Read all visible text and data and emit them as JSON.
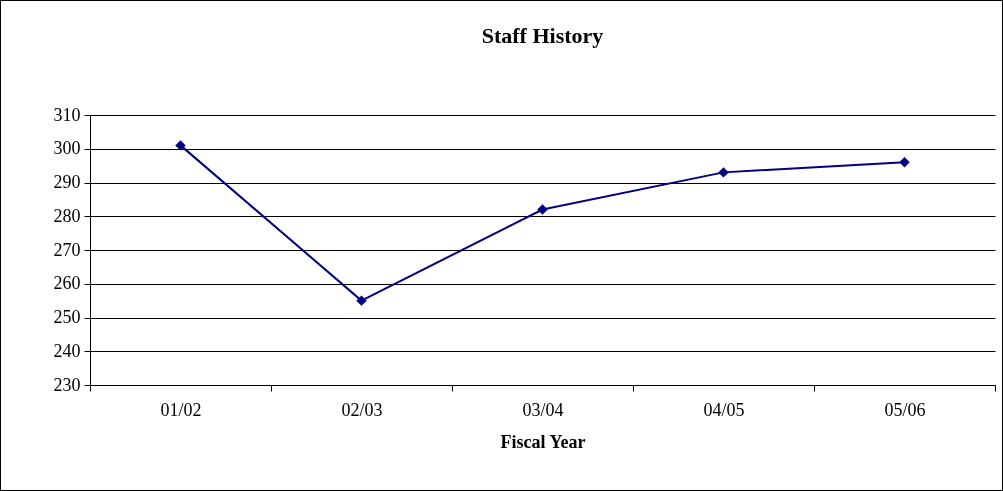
{
  "chart_data": {
    "type": "line",
    "title": "Staff History",
    "xlabel": "Fiscal Year",
    "categories": [
      "01/02",
      "02/03",
      "03/04",
      "04/05",
      "05/06"
    ],
    "series": [
      {
        "color": "#000080",
        "values": [
          301,
          255,
          282,
          293,
          296
        ]
      }
    ],
    "ylim": [
      230,
      310
    ],
    "yticks": [
      230,
      240,
      250,
      260,
      270,
      280,
      290,
      300,
      310
    ],
    "grid": "y",
    "legend": false,
    "marker": "diamond",
    "line_style": "solid"
  }
}
